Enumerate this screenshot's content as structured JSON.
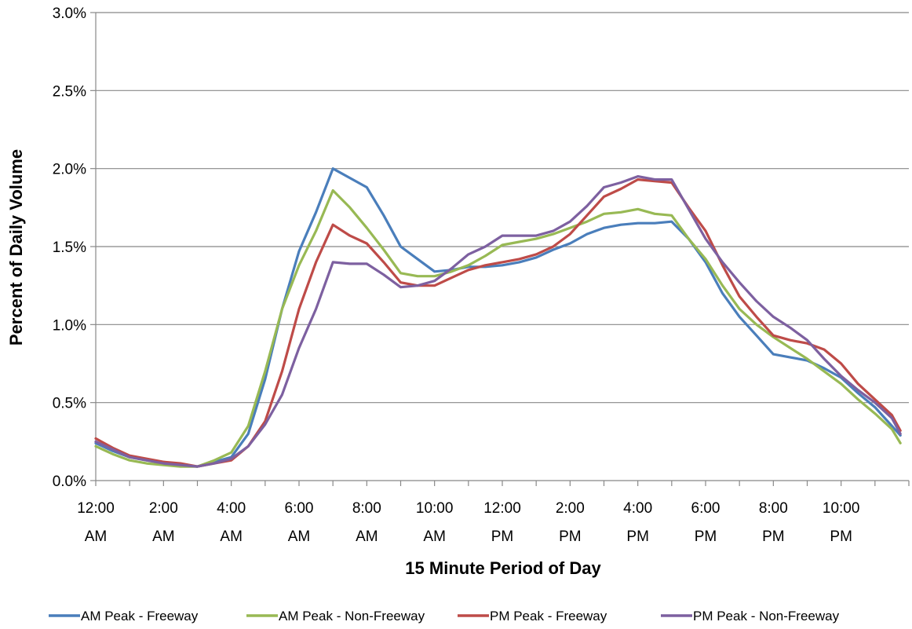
{
  "chart_data": {
    "type": "line",
    "xlabel": "15 Minute Period of Day",
    "ylabel": "Percent of Daily Volume",
    "ylim": [
      0,
      3.0
    ],
    "yticks": [
      "0.0%",
      "0.5%",
      "1.0%",
      "1.5%",
      "2.0%",
      "2.5%",
      "3.0%"
    ],
    "xticks": [
      {
        "line1": "12:00",
        "line2": "AM"
      },
      {
        "line1": "2:00",
        "line2": "AM"
      },
      {
        "line1": "4:00",
        "line2": "AM"
      },
      {
        "line1": "6:00",
        "line2": "AM"
      },
      {
        "line1": "8:00",
        "line2": "AM"
      },
      {
        "line1": "10:00",
        "line2": "AM"
      },
      {
        "line1": "12:00",
        "line2": "PM"
      },
      {
        "line1": "2:00",
        "line2": "PM"
      },
      {
        "line1": "4:00",
        "line2": "PM"
      },
      {
        "line1": "6:00",
        "line2": "PM"
      },
      {
        "line1": "8:00",
        "line2": "PM"
      },
      {
        "line1": "10:00",
        "line2": "PM"
      }
    ],
    "x_hours": [
      0,
      0.5,
      1,
      1.5,
      2,
      2.5,
      3,
      3.5,
      4,
      4.5,
      5,
      5.5,
      6,
      6.5,
      7,
      7.5,
      8,
      8.5,
      9,
      9.5,
      10,
      10.5,
      11,
      11.5,
      12,
      12.5,
      13,
      13.5,
      14,
      14.5,
      15,
      15.5,
      16,
      16.5,
      17,
      17.5,
      18,
      18.5,
      19,
      19.5,
      20,
      20.5,
      21,
      21.5,
      22,
      22.5,
      23,
      23.5,
      23.75
    ],
    "grid": true,
    "legend_position": "bottom",
    "series": [
      {
        "name": "AM Peak - Freeway",
        "color": "#4a7ebb",
        "values": [
          0.24,
          0.19,
          0.15,
          0.13,
          0.12,
          0.1,
          0.09,
          0.12,
          0.15,
          0.3,
          0.65,
          1.1,
          1.47,
          1.72,
          2.0,
          1.94,
          1.88,
          1.7,
          1.5,
          1.42,
          1.34,
          1.35,
          1.37,
          1.37,
          1.38,
          1.4,
          1.43,
          1.48,
          1.52,
          1.58,
          1.62,
          1.64,
          1.65,
          1.65,
          1.66,
          1.55,
          1.4,
          1.2,
          1.05,
          0.93,
          0.81,
          0.79,
          0.77,
          0.72,
          0.66,
          0.56,
          0.47,
          0.35,
          0.29
        ]
      },
      {
        "name": "AM Peak - Non-Freeway",
        "color": "#98b954",
        "values": [
          0.22,
          0.17,
          0.13,
          0.11,
          0.1,
          0.09,
          0.09,
          0.13,
          0.18,
          0.35,
          0.7,
          1.1,
          1.38,
          1.6,
          1.86,
          1.75,
          1.62,
          1.48,
          1.33,
          1.31,
          1.31,
          1.34,
          1.38,
          1.44,
          1.51,
          1.53,
          1.55,
          1.58,
          1.62,
          1.66,
          1.71,
          1.72,
          1.74,
          1.71,
          1.7,
          1.55,
          1.42,
          1.25,
          1.1,
          1.0,
          0.92,
          0.85,
          0.78,
          0.7,
          0.62,
          0.52,
          0.43,
          0.33,
          0.24
        ]
      },
      {
        "name": "PM Peak - Freeway",
        "color": "#be4b48",
        "values": [
          0.27,
          0.21,
          0.16,
          0.14,
          0.12,
          0.11,
          0.09,
          0.11,
          0.13,
          0.22,
          0.38,
          0.7,
          1.1,
          1.4,
          1.64,
          1.57,
          1.52,
          1.4,
          1.27,
          1.25,
          1.25,
          1.3,
          1.35,
          1.38,
          1.4,
          1.42,
          1.45,
          1.5,
          1.58,
          1.7,
          1.82,
          1.87,
          1.93,
          1.92,
          1.91,
          1.75,
          1.6,
          1.38,
          1.18,
          1.05,
          0.93,
          0.9,
          0.88,
          0.84,
          0.75,
          0.62,
          0.52,
          0.42,
          0.32
        ]
      },
      {
        "name": "PM Peak - Non-Freeway",
        "color": "#7d60a0",
        "values": [
          0.25,
          0.2,
          0.15,
          0.13,
          0.11,
          0.1,
          0.09,
          0.11,
          0.14,
          0.22,
          0.36,
          0.55,
          0.85,
          1.1,
          1.4,
          1.39,
          1.39,
          1.32,
          1.24,
          1.25,
          1.28,
          1.36,
          1.45,
          1.5,
          1.57,
          1.57,
          1.57,
          1.6,
          1.66,
          1.76,
          1.88,
          1.91,
          1.95,
          1.93,
          1.93,
          1.74,
          1.55,
          1.4,
          1.27,
          1.15,
          1.05,
          0.98,
          0.9,
          0.78,
          0.67,
          0.58,
          0.5,
          0.4,
          0.3
        ]
      }
    ]
  }
}
